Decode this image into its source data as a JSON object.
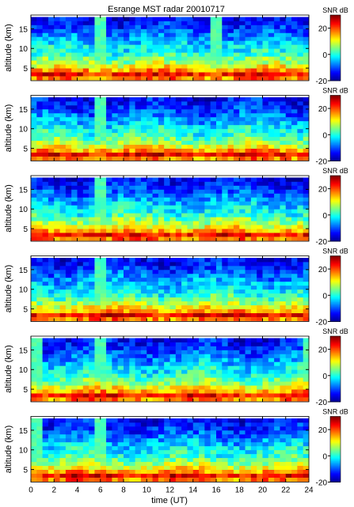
{
  "figure": {
    "title": "Esrange MST radar 20010717",
    "xlabel": "time (UT)"
  },
  "chart_data": {
    "type": "heatmap",
    "title": "Esrange MST radar 20010717",
    "xlabel": "time (UT)",
    "ylabel": "altitude (km)",
    "xlim": [
      0,
      24
    ],
    "ylim": [
      1.8,
      18.5
    ],
    "x_ticks": [
      0,
      2,
      4,
      6,
      8,
      10,
      12,
      14,
      16,
      18,
      20,
      22,
      24
    ],
    "y_ticks": [
      5,
      10,
      15
    ],
    "colorbar": {
      "label": "SNR dB",
      "range": [
        -20,
        30
      ],
      "ticks": [
        -20,
        0,
        20
      ]
    },
    "colormap": [
      "#00008f",
      "#0000ff",
      "#007fff",
      "#00ffff",
      "#7fff7f",
      "#ffff00",
      "#ff7f00",
      "#ff0000",
      "#7f0000"
    ],
    "time_bin_h": 0.5,
    "altitude_bins_km": [
      2.5,
      3.5,
      4.5,
      5.5,
      6.5,
      7.5,
      8.5,
      9.5,
      10.5,
      11.5,
      12.5,
      13.5,
      14.5,
      15.5,
      16.5,
      17.5
    ],
    "mean_snr_profile_db": [
      18,
      24,
      16,
      11,
      7,
      4,
      1,
      -1,
      -2,
      -4,
      -6,
      -8,
      -10,
      -12,
      -13,
      -14
    ],
    "panels": [
      {
        "ylabel": "altitude (km)",
        "colorbar_label": "SNR dB",
        "bright_columns_h": [
          [
            5.5,
            6.5
          ],
          [
            15.5,
            16.5
          ]
        ]
      },
      {
        "ylabel": "altitude (km)",
        "colorbar_label": "SNR dB",
        "bright_columns_h": [
          [
            5.5,
            6.5
          ]
        ]
      },
      {
        "ylabel": "altitude (km)",
        "colorbar_label": "SNR dB",
        "bright_columns_h": [
          [
            5.5,
            6.5
          ]
        ]
      },
      {
        "ylabel": "altitude (km)",
        "colorbar_label": "SNR dB",
        "bright_columns_h": [
          [
            5.5,
            6.5
          ]
        ]
      },
      {
        "ylabel": "altitude (km)",
        "colorbar_label": "SNR dB",
        "bright_columns_h": [
          [
            0,
            1
          ],
          [
            5.5,
            6.5
          ],
          [
            23.5,
            24
          ]
        ]
      },
      {
        "ylabel": "altitude (km)",
        "colorbar_label": "SNR dB",
        "bright_columns_h": [
          [
            0,
            1
          ],
          [
            5.5,
            6.5
          ]
        ]
      }
    ]
  }
}
